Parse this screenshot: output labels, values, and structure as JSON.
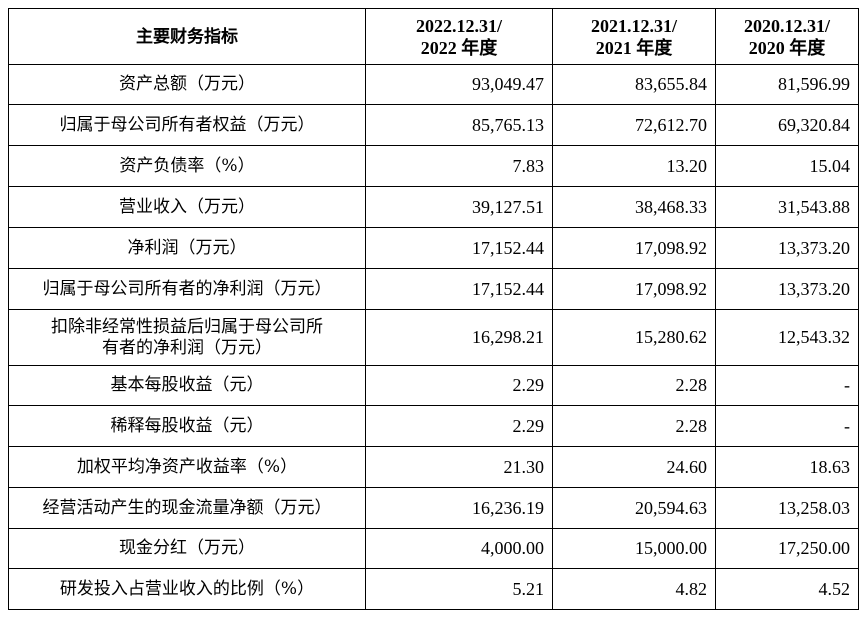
{
  "header": {
    "label": "主要财务指标",
    "columns": [
      {
        "line1": "2022.12.31/",
        "line2": "2022 年度"
      },
      {
        "line1": "2021.12.31/",
        "line2": "2021 年度"
      },
      {
        "line1": "2020.12.31/",
        "line2": "2020 年度"
      }
    ]
  },
  "rows": [
    {
      "label": "资产总额（万元）",
      "values": [
        "93,049.47",
        "83,655.84",
        "81,596.99"
      ]
    },
    {
      "label": "归属于母公司所有者权益（万元）",
      "values": [
        "85,765.13",
        "72,612.70",
        "69,320.84"
      ]
    },
    {
      "label": "资产负债率（%）",
      "values": [
        "7.83",
        "13.20",
        "15.04"
      ]
    },
    {
      "label": "营业收入（万元）",
      "values": [
        "39,127.51",
        "38,468.33",
        "31,543.88"
      ]
    },
    {
      "label": "净利润（万元）",
      "values": [
        "17,152.44",
        "17,098.92",
        "13,373.20"
      ]
    },
    {
      "label": "归属于母公司所有者的净利润（万元）",
      "values": [
        "17,152.44",
        "17,098.92",
        "13,373.20"
      ]
    },
    {
      "label": "扣除非经常性损益后归属于母公司所有者的净利润（万元）",
      "label_line1": "扣除非经常性损益后归属于母公司所",
      "label_line2": "有者的净利润（万元）",
      "values": [
        "16,298.21",
        "15,280.62",
        "12,543.32"
      ]
    },
    {
      "label": "基本每股收益（元）",
      "values": [
        "2.29",
        "2.28",
        "-"
      ]
    },
    {
      "label": "稀释每股收益（元）",
      "values": [
        "2.29",
        "2.28",
        "-"
      ]
    },
    {
      "label": "加权平均净资产收益率（%）",
      "values": [
        "21.30",
        "24.60",
        "18.63"
      ]
    },
    {
      "label": "经营活动产生的现金流量净额（万元）",
      "values": [
        "16,236.19",
        "20,594.63",
        "13,258.03"
      ]
    },
    {
      "label": "现金分红（万元）",
      "values": [
        "4,000.00",
        "15,000.00",
        "17,250.00"
      ]
    },
    {
      "label": "研发投入占营业收入的比例（%）",
      "values": [
        "5.21",
        "4.82",
        "4.52"
      ]
    }
  ]
}
